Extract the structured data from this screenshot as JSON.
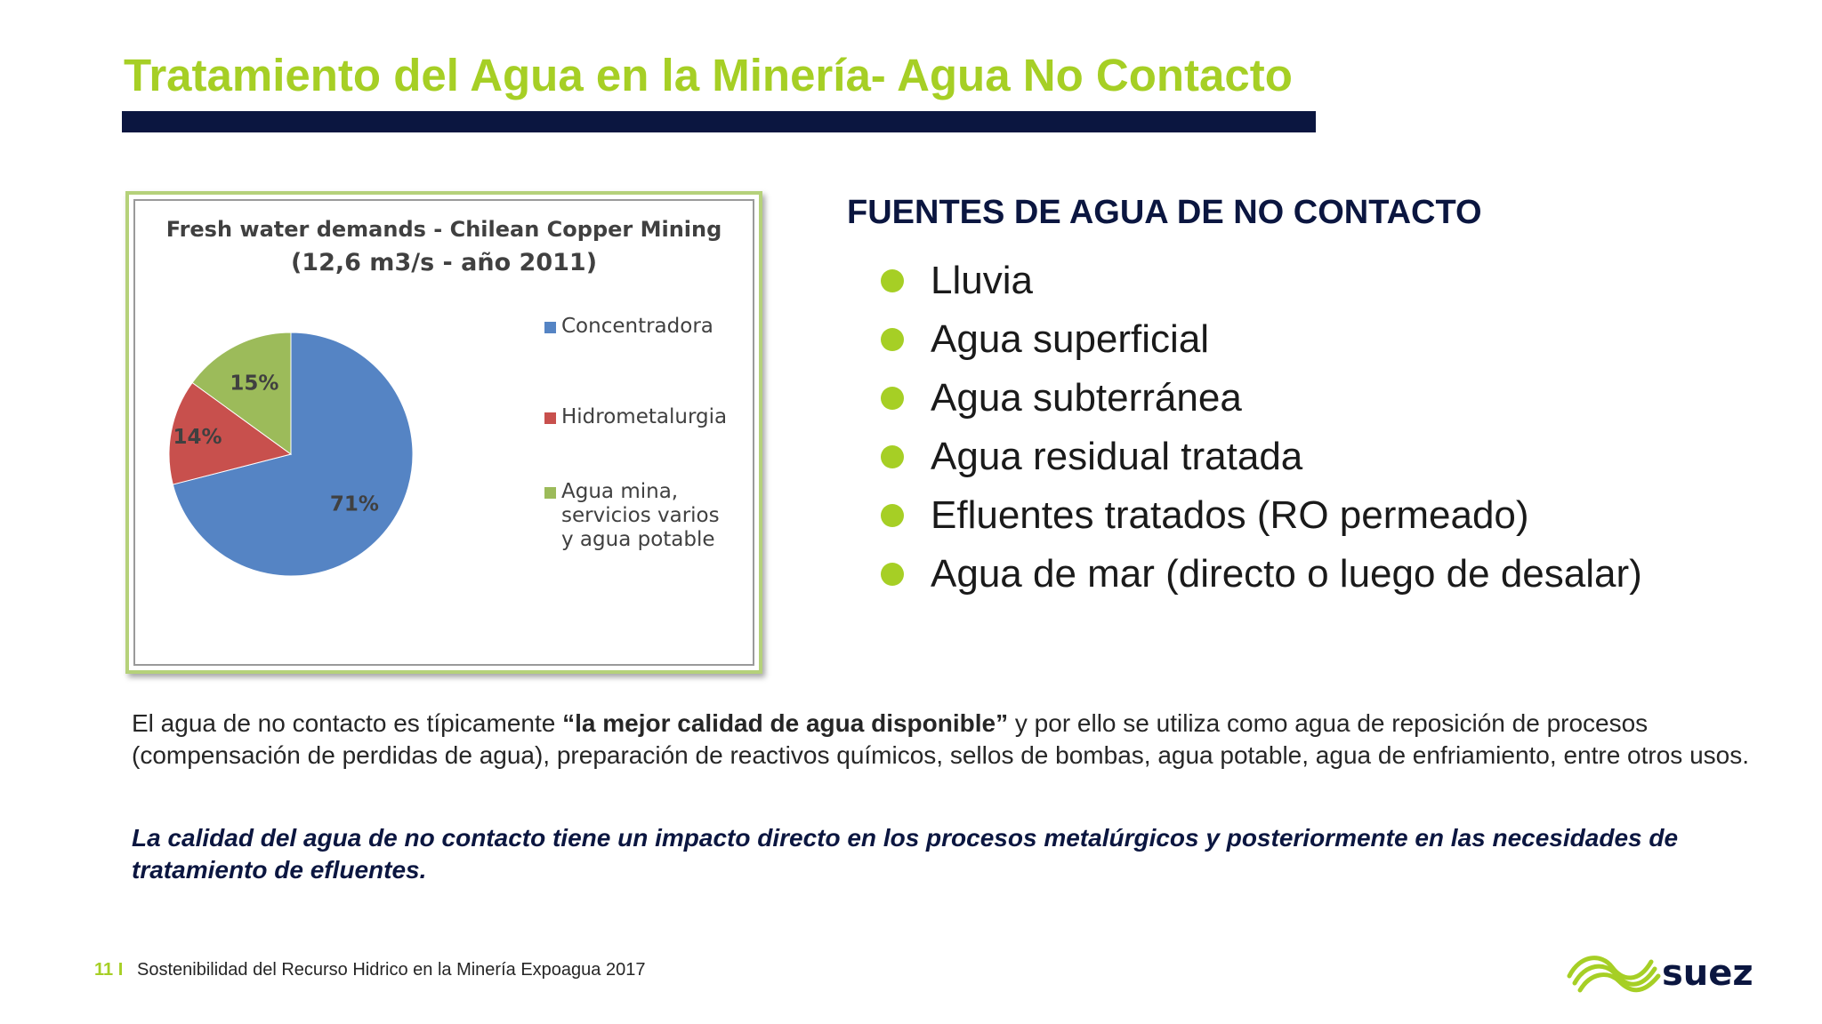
{
  "title": "Tratamiento del Agua en la Minería- Agua No Contacto",
  "chart_data": {
    "type": "pie",
    "title": "Fresh water demands - Chilean Copper Mining",
    "subtitle": "(12,6 m3/s  - año 2011)",
    "categories": [
      "Concentradora",
      "Hidrometalurgia",
      "Agua mina,\nservicios varios\ny agua potable"
    ],
    "values": [
      71,
      14,
      15
    ],
    "labels": [
      "71%",
      "14%",
      "15%"
    ],
    "colors": [
      "#5584c4",
      "#c8504d",
      "#9cbb5a"
    ],
    "legend": "right"
  },
  "section": {
    "heading": "FUENTES DE AGUA DE NO CONTACTO",
    "items": [
      "Lluvia",
      "Agua superficial",
      "Agua subterránea",
      "Agua residual tratada",
      "Efluentes tratados (RO permeado)",
      "Agua de mar (directo o luego de desalar)"
    ]
  },
  "paragraph": {
    "before": "El agua de no contacto es típicamente ",
    "bold": "“la mejor calidad de agua disponible”",
    "after": " y por ello se utiliza como agua de reposición de procesos (compensación de perdidas de agua), preparación de reactivos químicos, sellos de bombas, agua potable, agua de enfriamiento, entre otros usos."
  },
  "emphasis": "La calidad del agua de no contacto tiene un impacto directo en los procesos metalúrgicos y posteriormente en las necesidades de tratamiento de efluentes.",
  "footer": {
    "page": "11 I",
    "text": "Sostenibilidad del Recurso Hidrico en la Minería Expoagua 2017",
    "logo_text": "suez"
  },
  "colors": {
    "accent": "#a6cf25",
    "navy": "#0b1640"
  }
}
